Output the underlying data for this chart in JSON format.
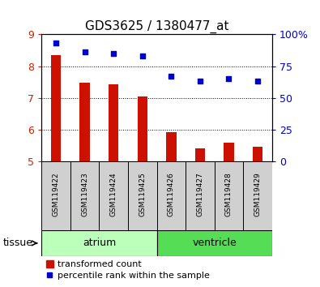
{
  "title": "GDS3625 / 1380477_at",
  "samples": [
    "GSM119422",
    "GSM119423",
    "GSM119424",
    "GSM119425",
    "GSM119426",
    "GSM119427",
    "GSM119428",
    "GSM119429"
  ],
  "transformed_counts": [
    8.35,
    7.48,
    7.43,
    7.05,
    5.92,
    5.42,
    5.58,
    5.47
  ],
  "percentile_ranks": [
    93,
    86,
    85,
    83,
    67,
    63,
    65,
    63
  ],
  "bar_color": "#cc1100",
  "dot_color": "#0000cc",
  "ylim_left": [
    5,
    9
  ],
  "ylim_right": [
    0,
    100
  ],
  "yticks_left": [
    5,
    6,
    7,
    8,
    9
  ],
  "yticks_right": [
    0,
    25,
    50,
    75,
    100
  ],
  "yticklabels_right": [
    "0",
    "25",
    "50",
    "75",
    "100%"
  ],
  "groups": [
    {
      "label": "atrium",
      "samples": [
        0,
        1,
        2,
        3
      ],
      "color": "#bbffbb"
    },
    {
      "label": "ventricle",
      "samples": [
        4,
        5,
        6,
        7
      ],
      "color": "#55dd55"
    }
  ],
  "tissue_label": "tissue",
  "legend_bar_label": "transformed count",
  "legend_dot_label": "percentile rank within the sample",
  "bar_bottom": 5.0,
  "bar_width": 0.35,
  "tick_label_color_left": "#cc2200",
  "tick_label_color_right": "#0000cc",
  "sample_box_color": "#d0d0d0"
}
